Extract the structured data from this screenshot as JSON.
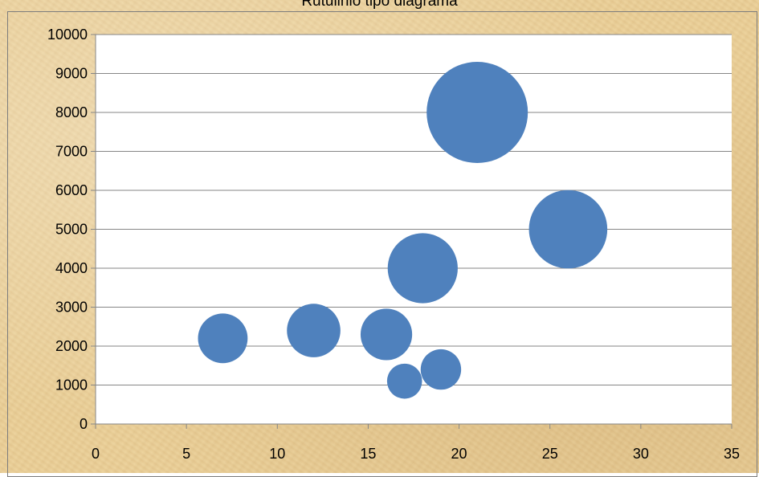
{
  "chart_data": {
    "type": "bubble",
    "title": "Rutulinio tipo diagrama",
    "xlim": [
      0,
      35
    ],
    "ylim": [
      0,
      10000
    ],
    "x_ticks": [
      "0",
      "5",
      "10",
      "15",
      "20",
      "25",
      "30",
      "35"
    ],
    "y_ticks": [
      "0",
      "1000",
      "2000",
      "3000",
      "4000",
      "5000",
      "6000",
      "7000",
      "8000",
      "9000",
      "10000"
    ],
    "grid": "horizontal",
    "legend": "none",
    "series": [
      {
        "color": "#4f81bd",
        "points": [
          {
            "x": 7,
            "y": 2200,
            "size": 6
          },
          {
            "x": 12,
            "y": 2400,
            "size": 7
          },
          {
            "x": 16,
            "y": 2300,
            "size": 6.5
          },
          {
            "x": 17,
            "y": 1100,
            "size": 3
          },
          {
            "x": 18,
            "y": 4000,
            "size": 12
          },
          {
            "x": 19,
            "y": 1400,
            "size": 4
          },
          {
            "x": 21,
            "y": 8000,
            "size": 25
          },
          {
            "x": 26,
            "y": 5000,
            "size": 15
          }
        ]
      }
    ]
  }
}
